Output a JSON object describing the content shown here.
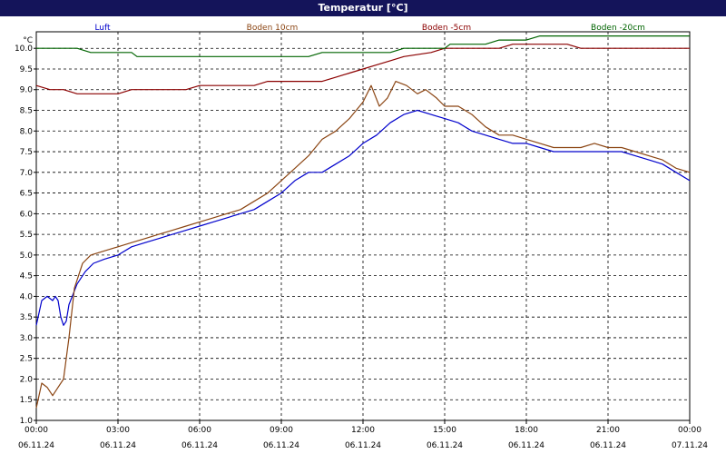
{
  "window": {
    "title": "Temperatur [°C]"
  },
  "chart_data": {
    "type": "line",
    "title": "Temperatur [°C]",
    "ylabel": "°C",
    "xlabel": "",
    "ylim": [
      1.0,
      10.4
    ],
    "xlim": [
      0,
      24
    ],
    "grid": true,
    "legend_position": "top",
    "y_ticks": [
      "1.0",
      "1.5",
      "2.0",
      "2.5",
      "3.0",
      "3.5",
      "4.0",
      "4.5",
      "5.0",
      "5.5",
      "6.0",
      "6.5",
      "7.0",
      "7.5",
      "8.0",
      "8.5",
      "9.0",
      "9.5",
      "10.0"
    ],
    "x_ticks": [
      {
        "time": "00:00",
        "date": "06.11.24"
      },
      {
        "time": "03:00",
        "date": "06.11.24"
      },
      {
        "time": "06:00",
        "date": "06.11.24"
      },
      {
        "time": "09:00",
        "date": "06.11.24"
      },
      {
        "time": "12:00",
        "date": "06.11.24"
      },
      {
        "time": "15:00",
        "date": "06.11.24"
      },
      {
        "time": "18:00",
        "date": "06.11.24"
      },
      {
        "time": "21:00",
        "date": "06.11.24"
      },
      {
        "time": "00:00",
        "date": "07.11.24"
      }
    ],
    "series": [
      {
        "name": "Luft",
        "color": "#0000cc",
        "points": [
          [
            0,
            3.3
          ],
          [
            0.2,
            3.9
          ],
          [
            0.4,
            4.0
          ],
          [
            0.6,
            3.9
          ],
          [
            0.7,
            4.0
          ],
          [
            0.8,
            3.9
          ],
          [
            0.9,
            3.5
          ],
          [
            1.0,
            3.3
          ],
          [
            1.1,
            3.4
          ],
          [
            1.2,
            3.8
          ],
          [
            1.5,
            4.3
          ],
          [
            1.8,
            4.6
          ],
          [
            2.1,
            4.8
          ],
          [
            2.5,
            4.9
          ],
          [
            3.0,
            5.0
          ],
          [
            3.5,
            5.2
          ],
          [
            4.0,
            5.3
          ],
          [
            4.5,
            5.4
          ],
          [
            5.0,
            5.5
          ],
          [
            5.5,
            5.6
          ],
          [
            6.0,
            5.7
          ],
          [
            6.5,
            5.8
          ],
          [
            7.0,
            5.9
          ],
          [
            7.5,
            6.0
          ],
          [
            8.0,
            6.1
          ],
          [
            8.5,
            6.3
          ],
          [
            9.0,
            6.5
          ],
          [
            9.5,
            6.8
          ],
          [
            10.0,
            7.0
          ],
          [
            10.5,
            7.0
          ],
          [
            11.0,
            7.2
          ],
          [
            11.5,
            7.4
          ],
          [
            12.0,
            7.7
          ],
          [
            12.5,
            7.9
          ],
          [
            13.0,
            8.2
          ],
          [
            13.5,
            8.4
          ],
          [
            14.0,
            8.5
          ],
          [
            14.5,
            8.4
          ],
          [
            15.0,
            8.3
          ],
          [
            15.5,
            8.2
          ],
          [
            16.0,
            8.0
          ],
          [
            16.5,
            7.9
          ],
          [
            17.0,
            7.8
          ],
          [
            17.5,
            7.7
          ],
          [
            18.0,
            7.7
          ],
          [
            18.5,
            7.6
          ],
          [
            19.0,
            7.5
          ],
          [
            19.5,
            7.5
          ],
          [
            20.0,
            7.5
          ],
          [
            20.5,
            7.5
          ],
          [
            21.0,
            7.5
          ],
          [
            21.5,
            7.5
          ],
          [
            22.0,
            7.4
          ],
          [
            22.5,
            7.3
          ],
          [
            23.0,
            7.2
          ],
          [
            23.5,
            7.0
          ],
          [
            24.0,
            6.8
          ]
        ]
      },
      {
        "name": "Boden 10cm",
        "color": "#8b4513",
        "points": [
          [
            0,
            1.3
          ],
          [
            0.2,
            1.9
          ],
          [
            0.4,
            1.8
          ],
          [
            0.6,
            1.6
          ],
          [
            0.8,
            1.8
          ],
          [
            1.0,
            2.0
          ],
          [
            1.2,
            3.0
          ],
          [
            1.4,
            4.2
          ],
          [
            1.7,
            4.8
          ],
          [
            2.0,
            5.0
          ],
          [
            2.5,
            5.1
          ],
          [
            3.0,
            5.2
          ],
          [
            3.5,
            5.3
          ],
          [
            4.0,
            5.4
          ],
          [
            4.5,
            5.5
          ],
          [
            5.0,
            5.6
          ],
          [
            5.5,
            5.7
          ],
          [
            6.0,
            5.8
          ],
          [
            6.5,
            5.9
          ],
          [
            7.0,
            6.0
          ],
          [
            7.5,
            6.1
          ],
          [
            8.0,
            6.3
          ],
          [
            8.5,
            6.5
          ],
          [
            9.0,
            6.8
          ],
          [
            9.5,
            7.1
          ],
          [
            10.0,
            7.4
          ],
          [
            10.5,
            7.8
          ],
          [
            11.0,
            8.0
          ],
          [
            11.5,
            8.3
          ],
          [
            12.0,
            8.7
          ],
          [
            12.3,
            9.1
          ],
          [
            12.6,
            8.6
          ],
          [
            12.9,
            8.8
          ],
          [
            13.2,
            9.2
          ],
          [
            13.6,
            9.1
          ],
          [
            14.0,
            8.9
          ],
          [
            14.3,
            9.0
          ],
          [
            14.7,
            8.8
          ],
          [
            15.0,
            8.6
          ],
          [
            15.5,
            8.6
          ],
          [
            16.0,
            8.4
          ],
          [
            16.5,
            8.1
          ],
          [
            17.0,
            7.9
          ],
          [
            17.5,
            7.9
          ],
          [
            18.0,
            7.8
          ],
          [
            18.5,
            7.7
          ],
          [
            19.0,
            7.6
          ],
          [
            19.5,
            7.6
          ],
          [
            20.0,
            7.6
          ],
          [
            20.5,
            7.7
          ],
          [
            21.0,
            7.6
          ],
          [
            21.5,
            7.6
          ],
          [
            22.0,
            7.5
          ],
          [
            22.5,
            7.4
          ],
          [
            23.0,
            7.3
          ],
          [
            23.5,
            7.1
          ],
          [
            24.0,
            7.0
          ]
        ]
      },
      {
        "name": "Boden -5cm",
        "color": "#8b0000",
        "points": [
          [
            0,
            9.1
          ],
          [
            0.5,
            9.0
          ],
          [
            1.0,
            9.0
          ],
          [
            1.5,
            8.9
          ],
          [
            2.0,
            8.9
          ],
          [
            3.0,
            8.9
          ],
          [
            3.5,
            9.0
          ],
          [
            5.5,
            9.0
          ],
          [
            6.0,
            9.1
          ],
          [
            8.0,
            9.1
          ],
          [
            8.5,
            9.2
          ],
          [
            10.5,
            9.2
          ],
          [
            11.0,
            9.3
          ],
          [
            11.5,
            9.4
          ],
          [
            12.0,
            9.5
          ],
          [
            12.5,
            9.6
          ],
          [
            13.0,
            9.7
          ],
          [
            13.5,
            9.8
          ],
          [
            14.5,
            9.9
          ],
          [
            15.0,
            10.0
          ],
          [
            17.0,
            10.0
          ],
          [
            17.5,
            10.1
          ],
          [
            19.5,
            10.1
          ],
          [
            20.0,
            10.0
          ],
          [
            24.0,
            10.0
          ]
        ]
      },
      {
        "name": "Boden -20cm",
        "color": "#006400",
        "points": [
          [
            0,
            10.0
          ],
          [
            1.5,
            10.0
          ],
          [
            2.0,
            9.9
          ],
          [
            3.5,
            9.9
          ],
          [
            3.7,
            9.8
          ],
          [
            10.0,
            9.8
          ],
          [
            10.5,
            9.9
          ],
          [
            13.0,
            9.9
          ],
          [
            13.5,
            10.0
          ],
          [
            15.0,
            10.0
          ],
          [
            15.2,
            10.1
          ],
          [
            16.5,
            10.1
          ],
          [
            17.0,
            10.2
          ],
          [
            18.0,
            10.2
          ],
          [
            18.5,
            10.3
          ],
          [
            24.0,
            10.3
          ]
        ]
      }
    ]
  }
}
